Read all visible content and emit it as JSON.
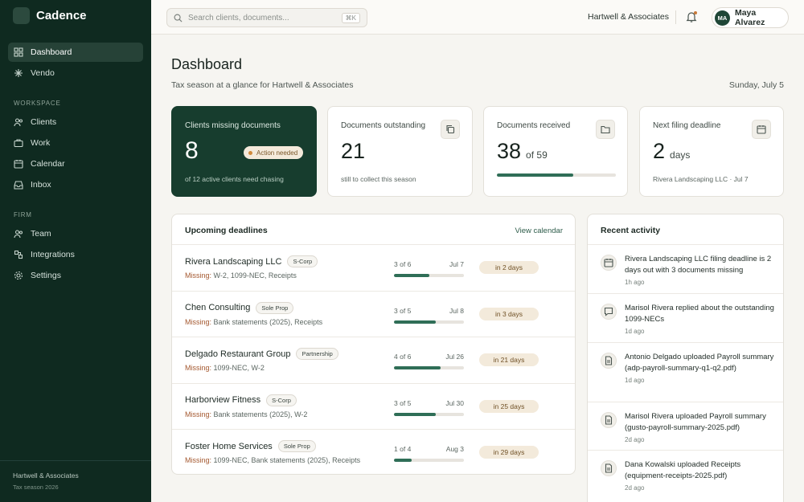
{
  "sidebar": {
    "brand": "Cadence",
    "primary_nav": [
      "Dashboard",
      "Vendo"
    ],
    "sections": [
      {
        "heading": "WORKSPACE",
        "items": [
          "Clients",
          "Work",
          "Calendar",
          "Inbox"
        ]
      },
      {
        "heading": "FIRM",
        "items": [
          "Team",
          "Integrations",
          "Settings"
        ]
      }
    ],
    "footer": {
      "org": "Hartwell & Associates",
      "season": "Tax season 2026"
    }
  },
  "topbar": {
    "search_placeholder": "Search clients, documents...",
    "shortcut": "⌘K",
    "org": "Hartwell & Associates",
    "user": {
      "initials": "MA",
      "name": "Maya Alvarez"
    }
  },
  "header": {
    "title": "Dashboard",
    "subtitle": "Tax season at a glance for Hartwell & Associates",
    "date": "Sunday, July 5"
  },
  "stats": [
    {
      "label": "Clients missing documents",
      "value": 8,
      "badge": "Action needed",
      "note": "of 12 active clients need chasing"
    },
    {
      "label": "Documents outstanding",
      "value": 21,
      "note": "still to collect this season"
    },
    {
      "label": "Documents received",
      "value": 38,
      "connector": "of",
      "total": 59
    },
    {
      "label": "Next filing deadline",
      "value": 2,
      "unit": "days",
      "note": "Rivera Landscaping LLC · Jul 7"
    }
  ],
  "deadlines": {
    "title": "Upcoming deadlines",
    "action": "View calendar",
    "missing_label": "Missing:",
    "connector": "of",
    "rows": [
      {
        "client": "Rivera Landscaping LLC",
        "entity": "S-Corp",
        "missing": "W-2, 1099-NEC, Receipts",
        "received": 3,
        "required": 6,
        "due_date": "Jul 7",
        "countdown": "in 2 days"
      },
      {
        "client": "Chen Consulting",
        "entity": "Sole Prop",
        "missing": "Bank statements (2025), Receipts",
        "received": 3,
        "required": 5,
        "due_date": "Jul 8",
        "countdown": "in 3 days"
      },
      {
        "client": "Delgado Restaurant Group",
        "entity": "Partnership",
        "missing": "1099-NEC, W-2",
        "received": 4,
        "required": 6,
        "due_date": "Jul 26",
        "countdown": "in 21 days"
      },
      {
        "client": "Harborview Fitness",
        "entity": "S-Corp",
        "missing": "Bank statements (2025), W-2",
        "received": 3,
        "required": 5,
        "due_date": "Jul 30",
        "countdown": "in 25 days"
      },
      {
        "client": "Foster Home Services",
        "entity": "Sole Prop",
        "missing": "1099-NEC, Bank statements (2025), Receipts",
        "received": 1,
        "required": 4,
        "due_date": "Aug 3",
        "countdown": "in 29 days"
      }
    ]
  },
  "activity": {
    "title": "Recent activity",
    "items": [
      {
        "text": "Rivera Landscaping LLC filing deadline is 2 days out with 3 documents missing",
        "time": "1h ago"
      },
      {
        "text": "Marisol Rivera replied about the outstanding 1099-NECs",
        "time": "1d ago"
      },
      {
        "text": "Antonio Delgado uploaded Payroll summary (adp-payroll-summary-q1-q2.pdf)",
        "time": "1d ago"
      },
      {
        "text": "Marisol Rivera uploaded Payroll summary (gusto-payroll-summary-2025.pdf)",
        "time": "2d ago"
      },
      {
        "text": "Dana Kowalski uploaded Receipts (equipment-receipts-2025.pdf)",
        "time": "2d ago"
      }
    ]
  }
}
